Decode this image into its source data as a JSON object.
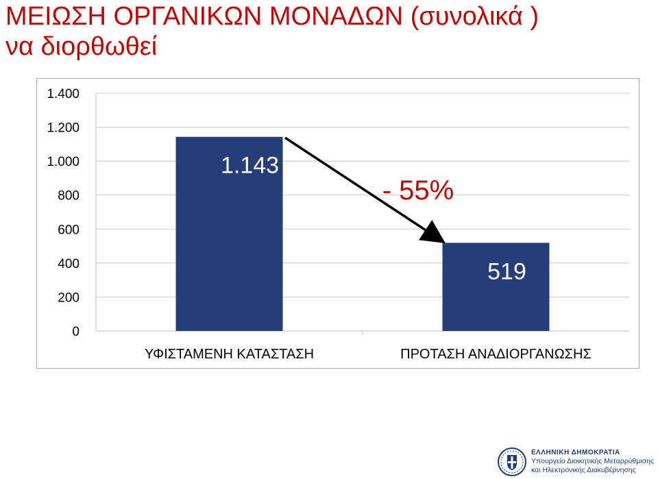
{
  "title": {
    "line1": "ΜΕΙΩΣΗ ΟΡΓΑΝΙΚΩΝ ΜΟΝΑΔΩΝ (συνολικά )",
    "line2": "να διορθωθεί"
  },
  "chart_data": {
    "type": "bar",
    "categories": [
      "ΥΦΙΣΤΑΜΕΝΗ ΚΑΤΑΣΤΑΣΗ",
      "ΠΡΟΤΑΣΗ ΑΝΑΔΙΟΡΓΑΝΩΣΗΣ"
    ],
    "values": [
      1143,
      519
    ],
    "data_labels": [
      "1.143",
      "519"
    ],
    "ylim": [
      0,
      1400
    ],
    "yticks": [
      0,
      200,
      400,
      600,
      800,
      1000,
      1200,
      1400
    ],
    "ytick_labels": [
      "0",
      "200",
      "400",
      "600",
      "800",
      "1.000",
      "1.200",
      "1.400"
    ],
    "grid": true,
    "bar_color": "#253e78",
    "annotation": "- 55%",
    "xlabel": "",
    "ylabel": ""
  },
  "footer": {
    "line1": "ΕΛΛΗΝΙΚΗ ΔΗΜΟΚΡΑΤΙΑ",
    "line2": "Υπουργείο Διοικητικής Μεταρρύθμισης",
    "line3": "και Ηλεκτρονικής Διακυβέρνησης"
  }
}
